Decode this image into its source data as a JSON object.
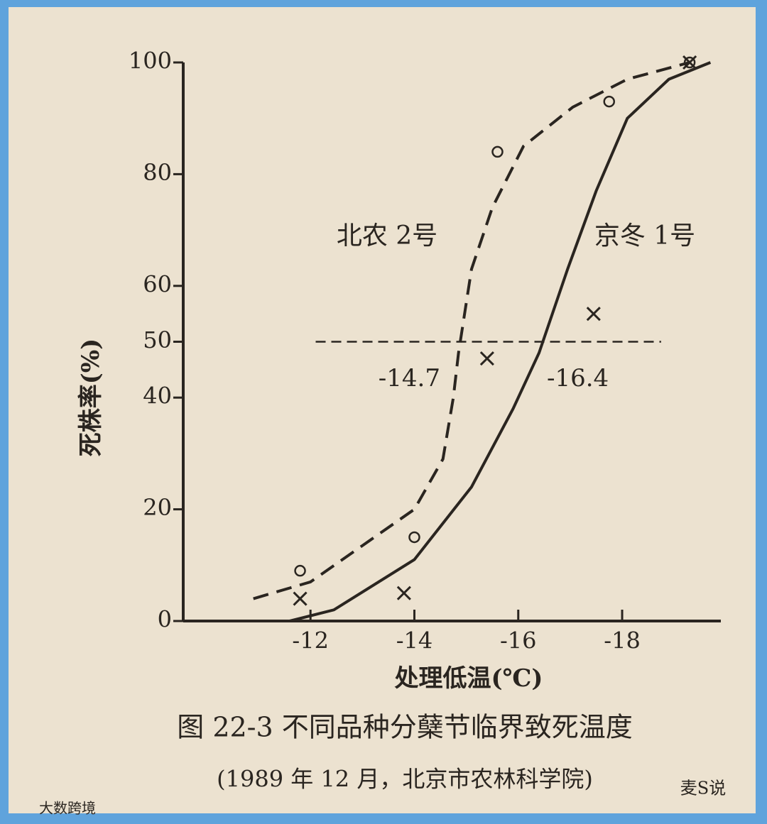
{
  "chart_data": {
    "type": "line",
    "caption": "图 22-3  不同品种分蘖节临界致死温度",
    "subcaption": "(1989 年 12 月，北京市农林科学院)",
    "xlabel": "处理低温(℃)",
    "ylabel": "死株率(%)",
    "xlim": [
      -9.55,
      -19.9
    ],
    "xticks": [
      -12,
      -14,
      -16,
      -18
    ],
    "ylim": [
      0,
      100
    ],
    "yticks": [
      0,
      20,
      40,
      50,
      60,
      80,
      100
    ],
    "series": [
      {
        "name": "北农 2号",
        "color": "#2a2520",
        "dash": true,
        "marker": "o",
        "x": [
          -11.8,
          -14,
          -15.6,
          -17.75,
          -19.3
        ],
        "values": [
          9,
          15,
          84,
          93,
          100
        ],
        "curve": {
          "x": [
            -10.9,
            -12,
            -14,
            -14.55,
            -14.75,
            -14.85,
            -15.1,
            -15.5,
            -16.1,
            -17.05,
            -18.1,
            -19.3
          ],
          "y": [
            4,
            7,
            20,
            29,
            40,
            48,
            63,
            74,
            85,
            92,
            97,
            100
          ]
        }
      },
      {
        "name": "京冬 1号",
        "color": "#2a2520",
        "dash": false,
        "marker": "x",
        "x": [
          -11.8,
          -13.8,
          -15.4,
          -17.45,
          -19.3
        ],
        "values": [
          4,
          5,
          47,
          55,
          100
        ],
        "curve": {
          "x": [
            -11.6,
            -12.45,
            -14,
            -15.1,
            -15.9,
            -16.4,
            -16.95,
            -17.5,
            -18.1,
            -18.9,
            -19.7
          ],
          "y": [
            0,
            2,
            11,
            24,
            38,
            48,
            63,
            77,
            90,
            97,
            100
          ]
        }
      }
    ],
    "reference_line": {
      "y": 50,
      "x": [
        -12.1,
        -18.75
      ]
    },
    "annotations": [
      "-14.7",
      "-16.4"
    ],
    "watermarks": [
      "麦S说",
      "大数跨境"
    ]
  }
}
